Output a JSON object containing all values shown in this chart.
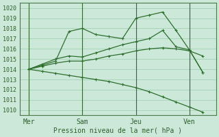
{
  "xlabel": "Pression niveau de la mer( hPa )",
  "bg_color": "#cce8d8",
  "grid_color": "#99ccaa",
  "line_color": "#2d6e2d",
  "vline_color": "#336633",
  "ylim": [
    1009.5,
    1020.5
  ],
  "yticks": [
    1010,
    1011,
    1012,
    1013,
    1014,
    1015,
    1016,
    1017,
    1018,
    1019,
    1020
  ],
  "day_labels": [
    "Mer",
    "Sam",
    "Jeu",
    "Ven"
  ],
  "day_positions": [
    0,
    24,
    48,
    72
  ],
  "xlim": [
    -4,
    84
  ],
  "lines": [
    {
      "x": [
        0,
        6,
        12,
        18,
        24,
        30,
        36,
        42,
        48,
        54,
        60,
        66,
        72,
        78
      ],
      "y": [
        1014.0,
        1014.4,
        1014.8,
        1017.7,
        1018.0,
        1017.4,
        1017.2,
        1017.0,
        1019.0,
        1019.3,
        1019.6,
        1017.8,
        1015.9,
        1013.7
      ]
    },
    {
      "x": [
        0,
        6,
        12,
        18,
        24,
        30,
        36,
        42,
        48,
        54,
        60,
        66,
        72,
        78
      ],
      "y": [
        1014.0,
        1014.5,
        1015.0,
        1015.3,
        1015.2,
        1015.6,
        1016.0,
        1016.4,
        1016.7,
        1017.0,
        1017.8,
        1016.2,
        1015.9,
        1013.7
      ]
    },
    {
      "x": [
        0,
        6,
        12,
        18,
        24,
        30,
        36,
        42,
        48,
        54,
        60,
        66,
        72,
        78
      ],
      "y": [
        1014.0,
        1014.3,
        1014.6,
        1014.8,
        1014.8,
        1015.0,
        1015.3,
        1015.5,
        1015.8,
        1016.0,
        1016.1,
        1016.0,
        1015.8,
        1015.3
      ]
    },
    {
      "x": [
        0,
        6,
        12,
        18,
        24,
        30,
        36,
        42,
        48,
        54,
        60,
        66,
        72,
        78
      ],
      "y": [
        1014.0,
        1013.8,
        1013.6,
        1013.4,
        1013.2,
        1013.0,
        1012.8,
        1012.5,
        1012.2,
        1011.8,
        1011.3,
        1010.8,
        1010.3,
        1009.8
      ]
    }
  ]
}
